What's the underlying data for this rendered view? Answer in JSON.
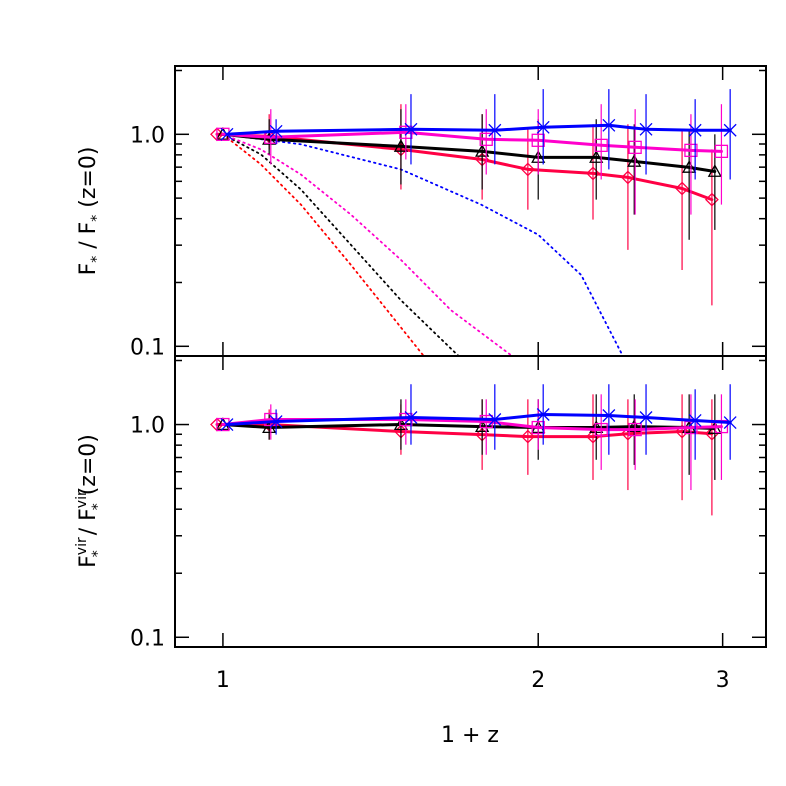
{
  "chart_data": [
    {
      "type": "line",
      "ylabel": [
        "F",
        "*",
        " / F",
        "*",
        " (z=0)"
      ],
      "xscale": "log",
      "yscale": "log",
      "xlim": [
        0.9,
        3.3
      ],
      "ylim": [
        0.09,
        2.1
      ],
      "yticks": [
        {
          "value": 0.1,
          "label": "0.1"
        },
        {
          "value": 1,
          "label": "1.0"
        }
      ],
      "yminorticks": [
        0.2,
        0.3,
        0.4,
        0.5,
        0.6,
        0.7,
        0.8,
        0.9,
        2
      ],
      "series": [
        {
          "color": "#ff0000",
          "linestyle": "dotted",
          "x": [
            1,
            1.087,
            1.187,
            1.325,
            1.556
          ],
          "values": [
            1,
            0.721,
            0.466,
            0.242,
            0.0897
          ]
        },
        {
          "color": "#000000",
          "linestyle": "dotted",
          "x": [
            1,
            1.087,
            1.187,
            1.325,
            1.479,
            1.68
          ],
          "values": [
            1,
            0.804,
            0.549,
            0.301,
            0.165,
            0.0897
          ]
        },
        {
          "color": "#ff00cc",
          "linestyle": "dotted",
          "x": [
            1,
            1.087,
            1.187,
            1.325,
            1.479,
            1.651,
            1.89
          ],
          "values": [
            1,
            0.849,
            0.646,
            0.418,
            0.256,
            0.148,
            0.0897
          ]
        },
        {
          "color": "#0000ff",
          "linestyle": "dotted",
          "x": [
            1,
            1.187,
            1.479,
            1.764,
            2.0,
            2.198,
            2.41
          ],
          "values": [
            1,
            0.897,
            0.683,
            0.466,
            0.336,
            0.217,
            0.0897
          ]
        },
        {
          "color": "#ff0044",
          "linestyle": "solid",
          "marker": "diamond",
          "x": [
            0.987,
            1.107,
            1.479,
            1.768,
            1.955,
            2.256,
            2.436,
            2.744,
            2.93
          ],
          "values": [
            1,
            0.978,
            0.849,
            0.761,
            0.683,
            0.654,
            0.626,
            0.555,
            0.492
          ],
          "err_low": [
            1,
            0.849,
            0.549,
            0.492,
            0.441,
            0.396,
            0.285,
            0.229,
            0.156
          ],
          "err_high": [
            1,
            1.244,
            1.387,
            1.244,
            1.056,
            1.115,
            1.115,
            1.056,
            0.849
          ]
        },
        {
          "color": "#000000",
          "linestyle": "solid",
          "marker": "triangle",
          "x": [
            1,
            1.107,
            1.479,
            1.768,
            2.0,
            2.272,
            2.47,
            2.787,
            2.949
          ],
          "values": [
            1,
            0.947,
            0.877,
            0.831,
            0.778,
            0.778,
            0.745,
            0.698,
            0.668
          ],
          "err_low": [
            1,
            0.804,
            0.58,
            0.549,
            0.492,
            0.492,
            0.418,
            0.318,
            0.354
          ],
          "err_high": [
            1,
            1.178,
            1.314,
            1.244,
            1.178,
            1.178,
            1.115,
            1.056,
            1
          ]
        },
        {
          "color": "#ff00cc",
          "linestyle": "solid",
          "marker": "square",
          "x": [
            1,
            1.111,
            1.495,
            1.784,
            2.0,
            2.297,
            2.475,
            2.798,
            2.992
          ],
          "values": [
            1,
            0.968,
            1.022,
            0.947,
            0.937,
            0.887,
            0.868,
            0.84,
            0.831
          ],
          "err_low": [
            1,
            0.721,
            0.761,
            0.646,
            0.646,
            0.612,
            0.418,
            0.418,
            0.466
          ],
          "err_high": [
            1,
            1.314,
            1.387,
            1.314,
            1.314,
            1.387,
            1.314,
            1.244,
            1.387
          ]
        },
        {
          "color": "#0000ff",
          "linestyle": "solid",
          "marker": "x",
          "x": [
            1.009,
            1.124,
            1.512,
            1.818,
            2.022,
            2.336,
            2.535,
            2.824,
            3.05
          ],
          "values": [
            1,
            1.033,
            1.056,
            1.045,
            1.079,
            1.103,
            1.056,
            1.045,
            1.045
          ],
          "err_low": [
            1,
            0.897,
            0.721,
            0.721,
            0.721,
            0.683,
            0.646,
            0.612,
            0.612
          ],
          "err_high": [
            1,
            1.178,
            1.547,
            1.547,
            1.634,
            1.634,
            1.547,
            1.465,
            1.634
          ]
        }
      ]
    },
    {
      "type": "line",
      "ylabel": [
        "F",
        "vir",
        "*",
        " / F",
        "vir",
        "*",
        "(z=0)"
      ],
      "xlabel": "1 + z",
      "xscale": "log",
      "yscale": "log",
      "xlim": [
        0.9,
        3.3
      ],
      "ylim": [
        0.09,
        2.1
      ],
      "xticks": [
        1,
        2,
        3
      ],
      "yticks": [
        {
          "value": 0.1,
          "label": "0.1"
        },
        {
          "value": 1,
          "label": "1.0"
        }
      ],
      "yminorticks": [
        0.2,
        0.3,
        0.4,
        0.5,
        0.6,
        0.7,
        0.8,
        0.9,
        2
      ],
      "series": [
        {
          "color": "#ff0044",
          "linestyle": "solid",
          "marker": "diamond",
          "x": [
            0.987,
            1.107,
            1.479,
            1.768,
            1.955,
            2.256,
            2.436,
            2.744,
            2.93
          ],
          "values": [
            1,
            1,
            0.927,
            0.897,
            0.878,
            0.878,
            0.906,
            0.927,
            0.906
          ],
          "err_low": [
            1,
            0.849,
            0.721,
            0.612,
            0.58,
            0.549,
            0.492,
            0.441,
            0.374
          ],
          "err_high": [
            1,
            1.178,
            1.244,
            1.314,
            1.314,
            1.387,
            1.314,
            1.387,
            1.314
          ]
        },
        {
          "color": "#000000",
          "linestyle": "solid",
          "marker": "triangle",
          "x": [
            1,
            1.107,
            1.479,
            1.768,
            2.0,
            2.272,
            2.47,
            2.787,
            2.949
          ],
          "values": [
            1,
            0.968,
            1,
            0.978,
            0.968,
            0.968,
            0.978,
            0.968,
            0.958
          ],
          "err_low": [
            1,
            0.849,
            0.761,
            0.721,
            0.683,
            0.683,
            0.646,
            0.58,
            0.549
          ],
          "err_high": [
            1,
            1.115,
            1.314,
            1.314,
            1.314,
            1.387,
            1.387,
            1.387,
            1.387
          ]
        },
        {
          "color": "#ff00cc",
          "linestyle": "solid",
          "marker": "square",
          "x": [
            1,
            1.111,
            1.495,
            1.784,
            2.0,
            2.297,
            2.475,
            2.798,
            2.992
          ],
          "values": [
            1,
            1.056,
            1.056,
            1.033,
            0.968,
            0.947,
            0.947,
            0.968,
            0.978
          ],
          "err_low": [
            1,
            0.849,
            0.804,
            0.721,
            0.761,
            0.612,
            0.612,
            0.492,
            0.549
          ],
          "err_high": [
            1,
            1.244,
            1.314,
            1.314,
            1.314,
            1.387,
            1.314,
            1.387,
            1.387
          ]
        },
        {
          "color": "#0000ff",
          "linestyle": "solid",
          "marker": "x",
          "x": [
            1.009,
            1.124,
            1.512,
            1.818,
            2.022,
            2.336,
            2.535,
            2.824,
            3.05
          ],
          "values": [
            1,
            1.033,
            1.079,
            1.056,
            1.115,
            1.103,
            1.079,
            1.045,
            1.022
          ],
          "err_low": [
            1,
            0.897,
            0.804,
            0.761,
            0.804,
            0.721,
            0.721,
            0.683,
            0.683
          ],
          "err_high": [
            1,
            1.178,
            1.547,
            1.547,
            1.547,
            1.547,
            1.547,
            1.465,
            1.547
          ]
        }
      ]
    }
  ]
}
